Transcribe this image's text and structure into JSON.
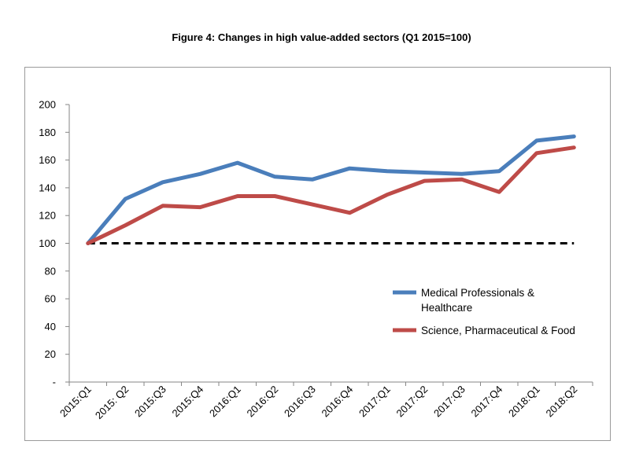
{
  "chart_data": {
    "type": "line",
    "title": "Figure 4: Changes in high value-added sectors (Q1 2015=100)",
    "categories": [
      "2015:Q1",
      "2015: Q2",
      "2015:Q3",
      "2015:Q4",
      "2016:Q1",
      "2016:Q2",
      "2016:Q3",
      "2016:Q4",
      "2017:Q1",
      "2017:Q2",
      "2017:Q3",
      "2017:Q4",
      "2018:Q1",
      "2018:Q2"
    ],
    "y_ticks": [
      "-",
      "20",
      "40",
      "60",
      "80",
      "100",
      "120",
      "140",
      "160",
      "180",
      "200"
    ],
    "ylim": [
      0,
      200
    ],
    "xlabel": "",
    "ylabel": "",
    "grid": false,
    "legend_position": "right",
    "series": [
      {
        "name": "Medical Professionals & Healthcare",
        "name_lines": [
          "Medical Professionals &",
          "Healthcare"
        ],
        "color": "#4a7ebb",
        "values": [
          100,
          132,
          144,
          150,
          158,
          148,
          146,
          154,
          152,
          151,
          150,
          152,
          174,
          177
        ]
      },
      {
        "name": "Science, Pharmaceutical & Food",
        "name_lines": [
          "Science, Pharmaceutical & Food"
        ],
        "color": "#be4b48",
        "values": [
          100,
          113,
          127,
          126,
          134,
          134,
          128,
          122,
          135,
          145,
          146,
          137,
          165,
          169
        ]
      }
    ],
    "reference_line": {
      "value": 100,
      "style": "dashed",
      "color": "#000000"
    }
  }
}
